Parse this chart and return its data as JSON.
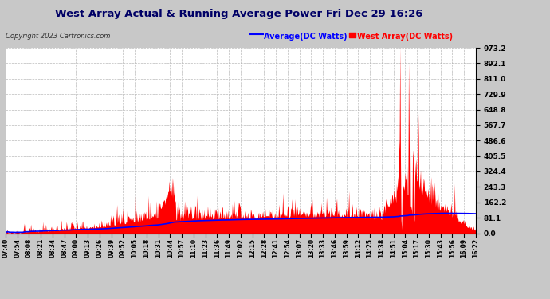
{
  "title": "West Array Actual & Running Average Power Fri Dec 29 16:26",
  "copyright": "Copyright 2023 Cartronics.com",
  "legend_avg": "Average(DC Watts)",
  "legend_west": "West Array(DC Watts)",
  "bg_color": "#c8c8c8",
  "plot_bg_color": "#ffffff",
  "bar_color": "#ff0000",
  "avg_line_color": "#0000ff",
  "title_color": "#000000",
  "yticks": [
    0.0,
    81.1,
    162.2,
    243.3,
    324.4,
    405.5,
    486.6,
    567.7,
    648.8,
    729.9,
    811.0,
    892.1,
    973.2
  ],
  "grid_color": "#aaaaaa",
  "xtick_labels": [
    "07:40",
    "07:54",
    "08:08",
    "08:21",
    "08:34",
    "08:47",
    "09:00",
    "09:13",
    "09:26",
    "09:39",
    "09:52",
    "10:05",
    "10:18",
    "10:31",
    "10:44",
    "10:57",
    "11:10",
    "11:23",
    "11:36",
    "11:49",
    "12:02",
    "12:15",
    "12:28",
    "12:41",
    "12:54",
    "13:07",
    "13:20",
    "13:33",
    "13:46",
    "13:59",
    "14:12",
    "14:25",
    "14:38",
    "14:51",
    "15:04",
    "15:17",
    "15:30",
    "15:43",
    "15:56",
    "16:09",
    "16:22"
  ]
}
